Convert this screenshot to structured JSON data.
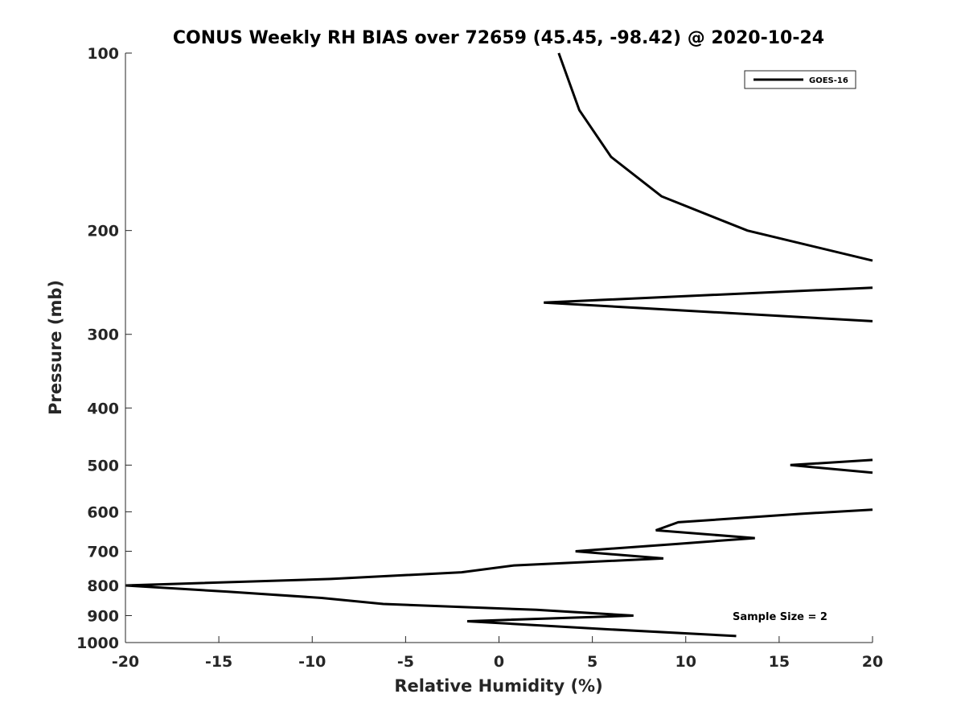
{
  "chart_data": {
    "type": "line",
    "title": "CONUS Weekly RH BIAS over 72659 (45.45, -98.42) @ 2020-10-24",
    "xlabel": "Relative Humidity (%)",
    "ylabel": "Pressure (mb)",
    "xlim": [
      -20,
      20
    ],
    "ylim": [
      100,
      1000
    ],
    "y_scale": "log",
    "y_reversed": true,
    "grid": false,
    "legend_position": "top-right",
    "x_ticks": [
      "-20",
      "-15",
      "-10",
      "-5",
      "0",
      "5",
      "10",
      "15",
      "20"
    ],
    "y_ticks": [
      "100",
      "200",
      "300",
      "400",
      "500",
      "600",
      "700",
      "800",
      "900",
      "1000"
    ],
    "annotation": "Sample Size = 2",
    "series": [
      {
        "name": "GOES-16",
        "color": "#000000",
        "segments": [
          [
            {
              "x": 3.2,
              "p": 100
            },
            {
              "x": 4.3,
              "p": 125
            },
            {
              "x": 6.0,
              "p": 150
            },
            {
              "x": 8.7,
              "p": 175
            },
            {
              "x": 13.3,
              "p": 200
            },
            {
              "x": 20,
              "p": 225
            }
          ],
          [
            {
              "x": 20,
              "p": 250
            },
            {
              "x": 2.4,
              "p": 265
            },
            {
              "x": 20,
              "p": 285
            }
          ],
          [
            {
              "x": 20,
              "p": 490
            },
            {
              "x": 15.6,
              "p": 500
            },
            {
              "x": 20,
              "p": 515
            }
          ],
          [
            {
              "x": 20,
              "p": 595
            },
            {
              "x": 16.1,
              "p": 605
            },
            {
              "x": 9.6,
              "p": 625
            },
            {
              "x": 8.4,
              "p": 645
            },
            {
              "x": 13.7,
              "p": 665
            },
            {
              "x": 9.6,
              "p": 680
            },
            {
              "x": 4.1,
              "p": 700
            },
            {
              "x": 8.8,
              "p": 720
            },
            {
              "x": 0.8,
              "p": 740
            },
            {
              "x": -2.0,
              "p": 760
            },
            {
              "x": -9.0,
              "p": 780
            },
            {
              "x": -20,
              "p": 800
            },
            {
              "x": -14.5,
              "p": 820
            },
            {
              "x": -9.5,
              "p": 840
            },
            {
              "x": -6.2,
              "p": 860
            },
            {
              "x": 2.0,
              "p": 880
            },
            {
              "x": 7.2,
              "p": 900
            },
            {
              "x": -1.7,
              "p": 920
            },
            {
              "x": 6.0,
              "p": 950
            },
            {
              "x": 12.7,
              "p": 975
            }
          ]
        ]
      }
    ]
  }
}
